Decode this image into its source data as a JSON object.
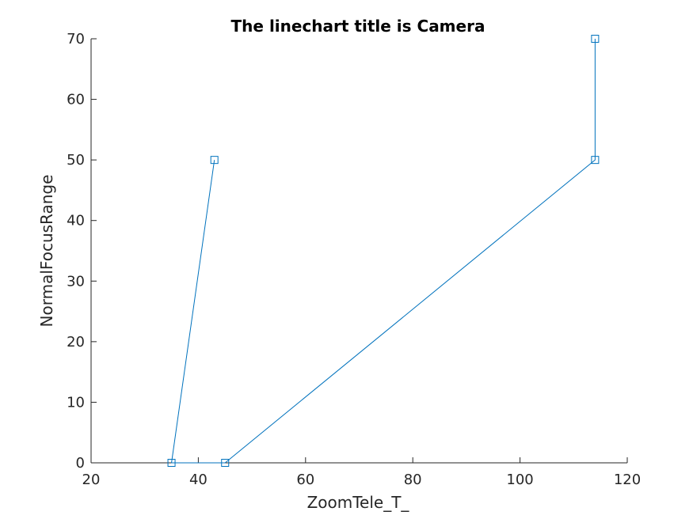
{
  "chart_data": {
    "type": "line",
    "title": "The linechart title is Camera",
    "xlabel": "ZoomTele_T_",
    "ylabel": "NormalFocusRange",
    "xlim": [
      20,
      120
    ],
    "ylim": [
      0,
      70
    ],
    "xticks": [
      20,
      40,
      60,
      80,
      100,
      120
    ],
    "yticks": [
      0,
      10,
      20,
      30,
      40,
      50,
      60,
      70
    ],
    "grid": false,
    "marker": "square",
    "line_color": "#0072BD",
    "series": [
      {
        "x": [
          43,
          35,
          45,
          114,
          114
        ],
        "y": [
          50,
          0,
          0,
          50,
          70
        ]
      }
    ]
  }
}
